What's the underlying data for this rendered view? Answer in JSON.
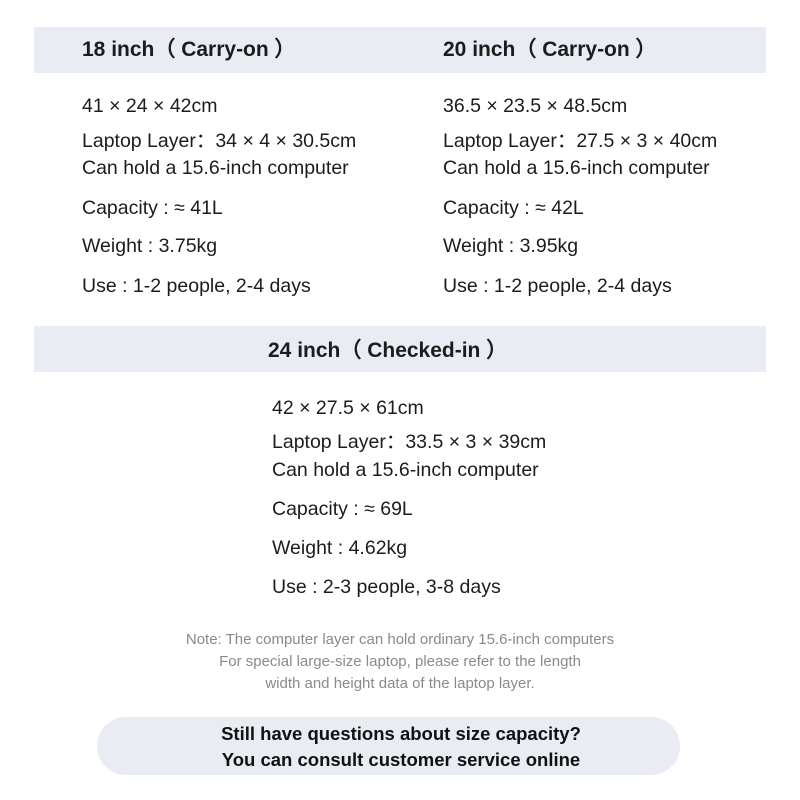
{
  "sections": [
    {
      "title": "18 inch（ Carry-on ）",
      "dimensions": "41 × 24 × 42cm",
      "laptop_layer": "Laptop Layer：34 × 4 × 30.5cm",
      "laptop_note": "Can hold a 15.6-inch computer",
      "capacity": "Capacity : ≈ 41L",
      "weight": "Weight : 3.75kg",
      "use": "Use : 1-2 people, 2-4 days"
    },
    {
      "title": "20 inch（ Carry-on ）",
      "dimensions": "36.5 × 23.5 × 48.5cm",
      "laptop_layer": "Laptop Layer：27.5 × 3 × 40cm",
      "laptop_note": "Can hold a 15.6-inch computer",
      "capacity": "Capacity : ≈ 42L",
      "weight": "Weight : 3.95kg",
      "use": "Use : 1-2 people, 2-4 days"
    },
    {
      "title": "24 inch（ Checked-in ）",
      "dimensions": "42 × 27.5 × 61cm",
      "laptop_layer": "Laptop Layer：33.5 × 3 × 39cm",
      "laptop_note": "Can hold a 15.6-inch computer",
      "capacity": "Capacity : ≈ 69L",
      "weight": "Weight : 4.62kg",
      "use": "Use : 2-3 people, 3-8 days"
    }
  ],
  "note": [
    "Note: The computer layer can hold ordinary 15.6-inch computers",
    "For special large-size laptop, please refer to the length",
    "width and height data of the laptop layer."
  ],
  "contact": [
    "Still have questions about size capacity?",
    "You can consult customer service online"
  ],
  "colors": {
    "header_bg": "#e9ecf3",
    "note_text": "#8a8a8a"
  }
}
